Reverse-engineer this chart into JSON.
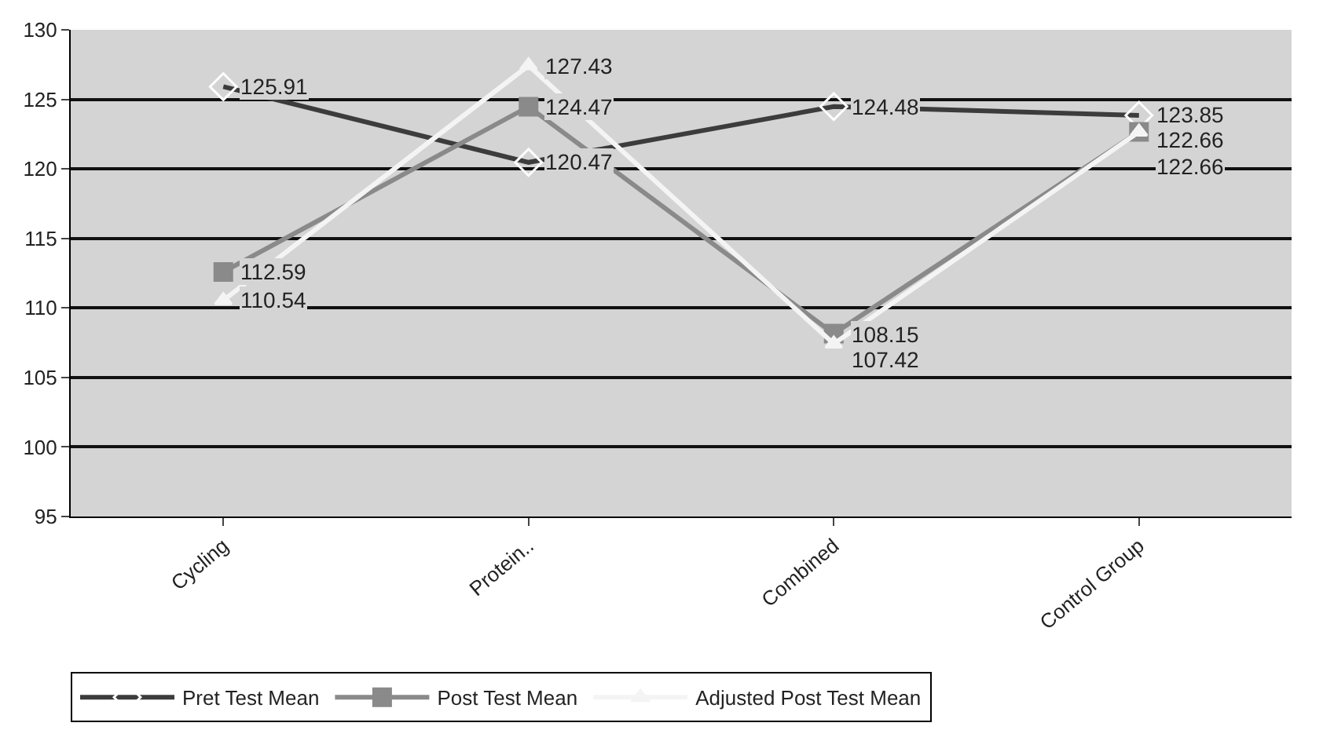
{
  "chart_data": {
    "type": "line",
    "categories": [
      "Cycling",
      "Protein..",
      "Combined",
      "Control Group"
    ],
    "series": [
      {
        "name": "Pret Test Mean",
        "color": "#3c3c3c",
        "marker": "diamond",
        "values": [
          125.91,
          120.47,
          124.48,
          123.85
        ]
      },
      {
        "name": "Post Test Mean",
        "color": "#8a8a8a",
        "marker": "square",
        "values": [
          112.59,
          124.47,
          108.15,
          122.66
        ]
      },
      {
        "name": "Adjusted Post Test Mean",
        "color": "#f4f4f4",
        "marker": "triangle",
        "values": [
          110.54,
          127.43,
          107.42,
          122.66
        ]
      }
    ],
    "ylim": [
      95,
      130
    ],
    "yticks": [
      95,
      100,
      105,
      110,
      115,
      120,
      125,
      130
    ],
    "grid": "y",
    "legend": "bottom",
    "data_labels": true
  }
}
